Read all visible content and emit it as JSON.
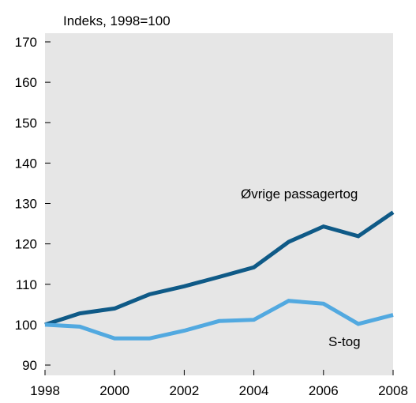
{
  "chart_data": {
    "type": "line",
    "title": "",
    "xlabel": "",
    "ylabel": "Indeks, 1998=100",
    "x": [
      1998,
      1999,
      2000,
      2001,
      2002,
      2003,
      2004,
      2005,
      2006,
      2007,
      2008
    ],
    "xticks": [
      "1998",
      "2000",
      "2002",
      "2004",
      "2006",
      "2008"
    ],
    "yticks": [
      "90",
      "100",
      "110",
      "120",
      "130",
      "140",
      "150",
      "160",
      "170"
    ],
    "xlim": [
      1998,
      2008
    ],
    "ylim": [
      88,
      170
    ],
    "grid": false,
    "legend": "none",
    "background_color": "#e6e6e6",
    "series": [
      {
        "name": "Øvrige passagertog",
        "color": "#0f5a87",
        "values": [
          100.0,
          102.8,
          104.0,
          107.5,
          109.5,
          111.8,
          114.2,
          120.5,
          124.3,
          121.9,
          127.8
        ]
      },
      {
        "name": "S-tog",
        "color": "#52a9e0",
        "values": [
          100.0,
          99.5,
          96.6,
          96.6,
          98.5,
          100.9,
          101.2,
          105.9,
          105.2,
          100.2,
          102.4
        ]
      }
    ]
  }
}
